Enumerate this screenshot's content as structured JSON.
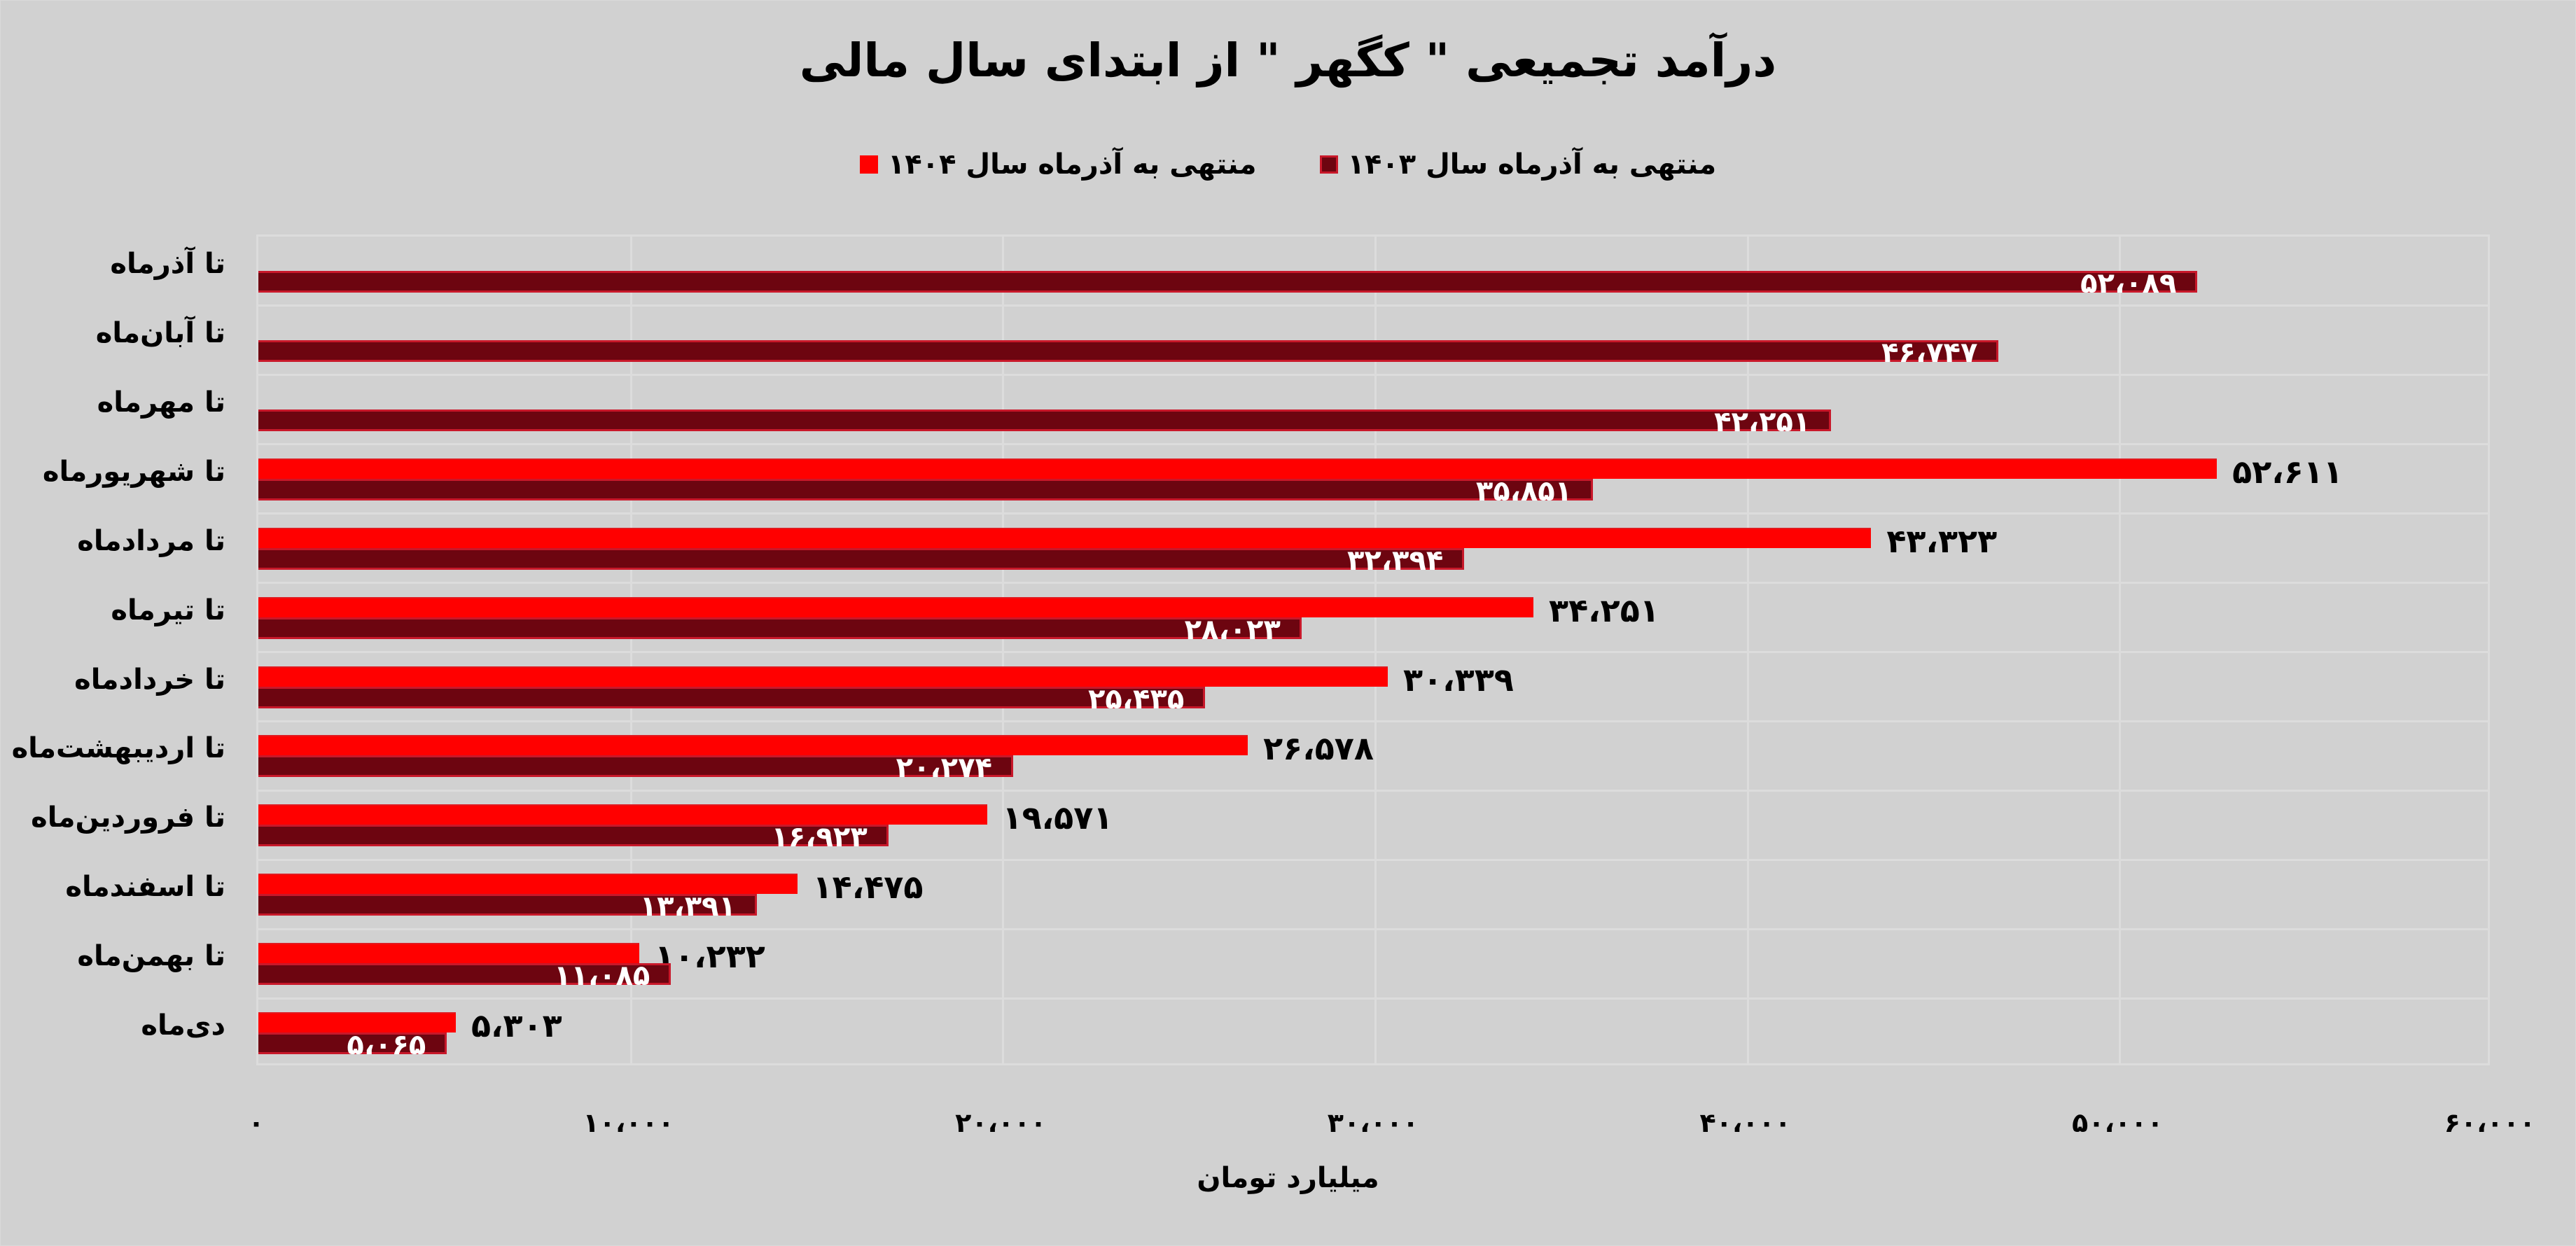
{
  "title": "درآمد تجمیعی \" کگهر \" از ابتدای سال مالی",
  "legend": [
    {
      "label": "منتهی به آذرماه سال ۱۴۰۳",
      "color": "#6d0510",
      "border": "#c8182a"
    },
    {
      "label": "منتهی به آذرماه سال ۱۴۰۴",
      "color": "#ff0000",
      "border": "#ff0000"
    }
  ],
  "x_axis": {
    "title": "میلیارد تومان",
    "ticks": [
      "۰",
      "۱۰،۰۰۰",
      "۲۰،۰۰۰",
      "۳۰،۰۰۰",
      "۴۰،۰۰۰",
      "۵۰،۰۰۰",
      "۶۰،۰۰۰"
    ]
  },
  "rows": [
    {
      "label": "تا آذرماه",
      "v1403": "۵۲،۰۸۹",
      "v1404": ""
    },
    {
      "label": "تا آبان‌ماه",
      "v1403": "۴۶،۷۴۷",
      "v1404": ""
    },
    {
      "label": "تا مهرماه",
      "v1403": "۴۲،۲۵۱",
      "v1404": ""
    },
    {
      "label": "تا شهریورماه",
      "v1403": "۳۵،۸۵۱",
      "v1404": "۵۲،۶۱۱"
    },
    {
      "label": "تا مردادماه",
      "v1403": "۳۲،۳۹۴",
      "v1404": "۴۳،۳۲۳"
    },
    {
      "label": "تا تیرماه",
      "v1403": "۲۸،۰۲۳",
      "v1404": "۳۴،۲۵۱"
    },
    {
      "label": "تا خردادماه",
      "v1403": "۲۵،۴۳۵",
      "v1404": "۳۰،۳۳۹"
    },
    {
      "label": "تا اردیبهشت‌ماه",
      "v1403": "۲۰،۲۷۴",
      "v1404": "۲۶،۵۷۸"
    },
    {
      "label": "تا فروردین‌ماه",
      "v1403": "۱۶،۹۲۳",
      "v1404": "۱۹،۵۷۱"
    },
    {
      "label": "تا اسفندماه",
      "v1403": "۱۳،۳۹۱",
      "v1404": "۱۴،۴۷۵"
    },
    {
      "label": "تا بهمن‌ماه",
      "v1403": "۱۱،۰۸۵",
      "v1404": "۱۰،۲۳۲"
    },
    {
      "label": "دی‌ماه",
      "v1403": "۵،۰۶۵",
      "v1404": "۵،۳۰۳"
    }
  ],
  "chart_data": {
    "type": "bar",
    "orientation": "horizontal",
    "title": "درآمد تجمیعی \" کگهر \" از ابتدای سال مالی",
    "xlabel": "میلیارد تومان",
    "ylabel": "",
    "xlim": [
      0,
      60000
    ],
    "grid": true,
    "legend_position": "top",
    "categories": [
      "تا آذرماه",
      "تا آبان‌ماه",
      "تا مهرماه",
      "تا شهریورماه",
      "تا مردادماه",
      "تا تیرماه",
      "تا خردادماه",
      "تا اردیبهشت‌ماه",
      "تا فروردین‌ماه",
      "تا اسفندماه",
      "تا بهمن‌ماه",
      "دی‌ماه"
    ],
    "series": [
      {
        "name": "منتهی به آذرماه سال ۱۴۰۳",
        "color": "#6d0510",
        "values": [
          52089,
          46747,
          42251,
          35851,
          32394,
          28023,
          25435,
          20274,
          16923,
          13391,
          11085,
          5065
        ]
      },
      {
        "name": "منتهی به آذرماه سال ۱۴۰۴",
        "color": "#ff0000",
        "values": [
          null,
          null,
          null,
          52611,
          43323,
          34251,
          30339,
          26578,
          19571,
          14475,
          10232,
          5303
        ]
      }
    ],
    "x_ticks": [
      0,
      10000,
      20000,
      30000,
      40000,
      50000,
      60000
    ]
  }
}
